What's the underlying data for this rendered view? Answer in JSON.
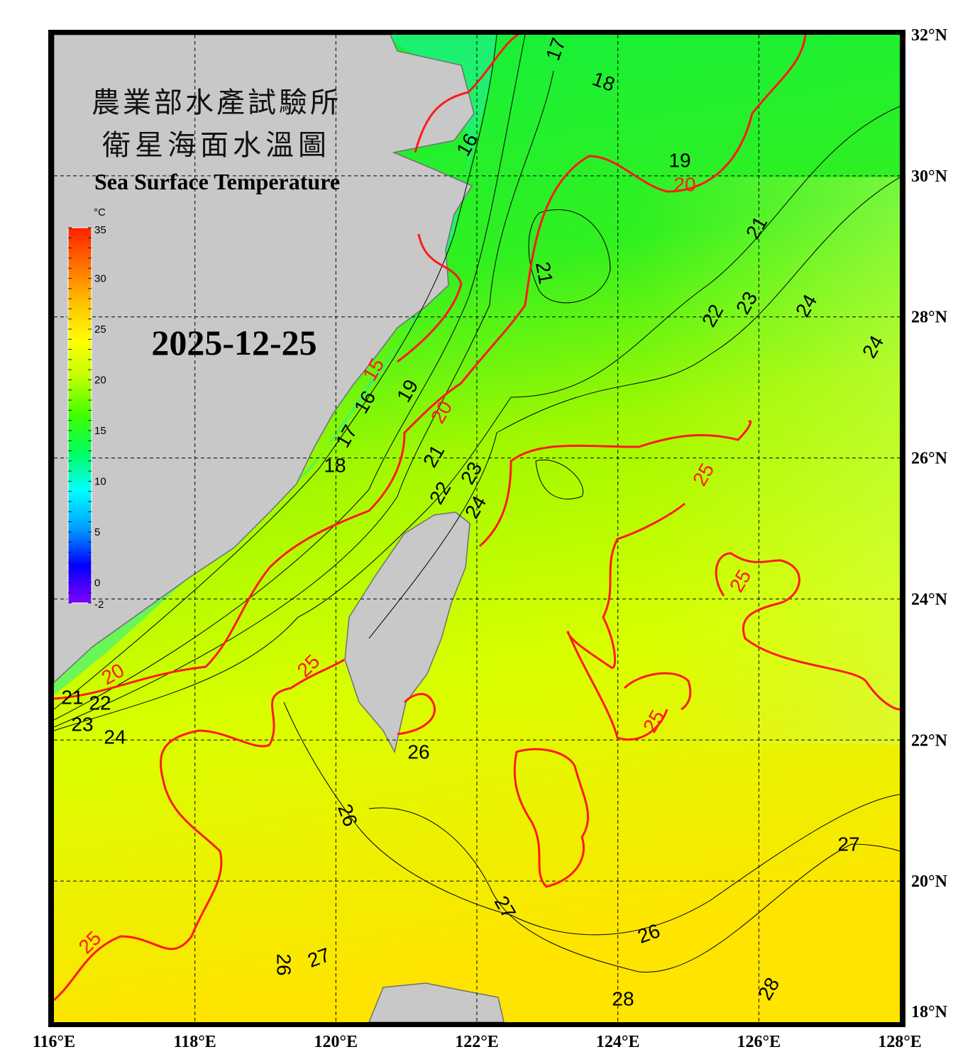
{
  "title": {
    "line1": "農業部水產試驗所",
    "line2": "衛星海面水溫圖",
    "english": "Sea Surface Temperature",
    "date": "2025-12-25"
  },
  "colorbar": {
    "unit": "°C",
    "range": [
      -2,
      35
    ],
    "ticks": [
      "35",
      "30",
      "25",
      "20",
      "15",
      "10",
      "5",
      "0",
      "-2"
    ],
    "colors": [
      "#8000ff",
      "#0000ff",
      "#00a0ff",
      "#00ffff",
      "#00ff60",
      "#40ff00",
      "#c0ff00",
      "#ffff00",
      "#ffc000",
      "#ff7000",
      "#ff2000"
    ]
  },
  "axes": {
    "lon_range": [
      116,
      128
    ],
    "lat_range": [
      18,
      32
    ],
    "lon_labels": [
      "116°E",
      "118°E",
      "120°E",
      "122°E",
      "124°E",
      "126°E",
      "128°E"
    ],
    "lat_labels": [
      "32°N",
      "30°N",
      "28°N",
      "26°N",
      "24°N",
      "22°N",
      "20°N",
      "18°N"
    ],
    "grid": "dashed every 2°"
  },
  "colors": {
    "land": "#c8c8c8",
    "highlight_contour": "#ff1a1a",
    "contour": "#000000"
  },
  "contour_labels": [
    "17",
    "18",
    "16",
    "19",
    "20",
    "21",
    "21",
    "22",
    "23",
    "24",
    "24",
    "15",
    "16",
    "19",
    "20",
    "17",
    "18",
    "21",
    "22",
    "23",
    "24",
    "25",
    "25",
    "25",
    "20",
    "21",
    "22",
    "23",
    "24",
    "25",
    "26",
    "26",
    "27",
    "26",
    "27",
    "28",
    "28",
    "27",
    "26",
    "25"
  ]
}
